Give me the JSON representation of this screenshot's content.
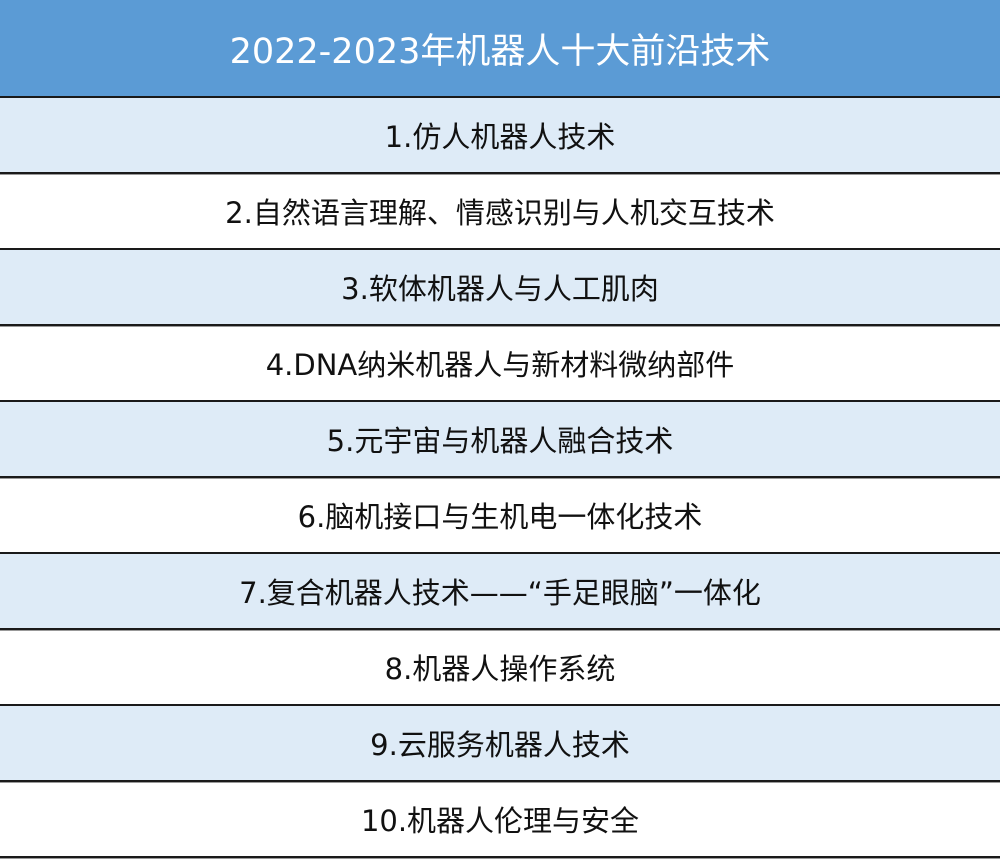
{
  "table": {
    "title": "2022-2023年机器人十大前沿技术",
    "rows": [
      "1.仿人机器人技术",
      "2.自然语言理解、情感识别与人机交互技术",
      "3.软体机器人与人工肌肉",
      "4.DNA纳米机器人与新材料微纳部件",
      "5.元宇宙与机器人融合技术",
      "6.脑机接口与生机电一体化技术",
      "7.复合机器人技术——“手足眼脑”一体化",
      "8.机器人操作系统",
      "9.云服务机器人技术",
      "10.机器人伦理与安全"
    ]
  },
  "colors": {
    "header_bg": "#5b9bd5",
    "alt_row_bg": "#deebf7",
    "header_text": "#ffffff"
  }
}
